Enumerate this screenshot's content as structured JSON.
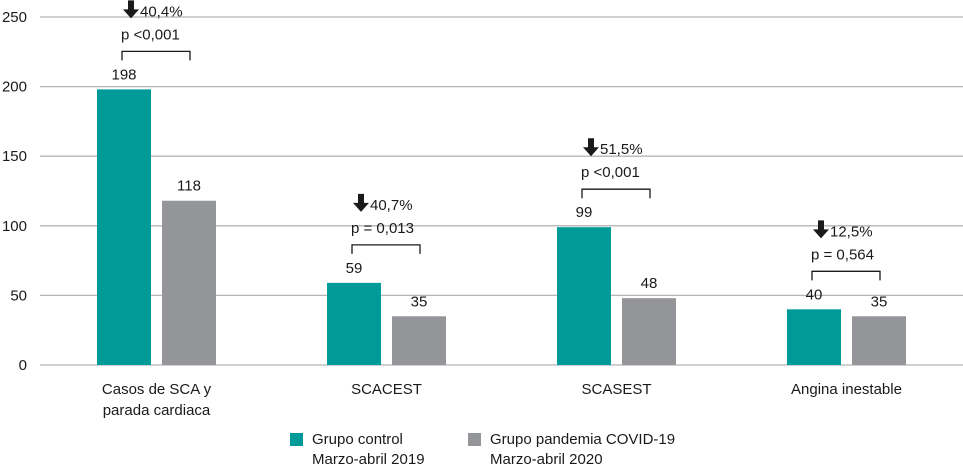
{
  "chart_data": {
    "type": "bar",
    "title": "",
    "xlabel": "",
    "ylabel": "",
    "ylim": [
      0,
      250
    ],
    "yticks": [
      0,
      50,
      100,
      150,
      200,
      250
    ],
    "grid": true,
    "categories": [
      [
        "Casos de SCA y",
        "parada cardiaca"
      ],
      [
        "SCACEST"
      ],
      [
        "SCASEST"
      ],
      [
        "Angina inestable"
      ]
    ],
    "series": [
      {
        "name": "Grupo control",
        "sublabel": "Marzo-abril 2019",
        "color": "#009b98",
        "values": [
          198,
          59,
          99,
          40
        ]
      },
      {
        "name": "Grupo pandemia COVID-19",
        "sublabel": "Marzo-abril 2020",
        "color": "#949598",
        "values": [
          118,
          35,
          48,
          35
        ]
      }
    ],
    "annotations": [
      {
        "arrow": "down-arrow-icon",
        "change": "40,4%",
        "p": "p <0,001"
      },
      {
        "arrow": "down-arrow-icon",
        "change": "40,7%",
        "p": "p = 0,013"
      },
      {
        "arrow": "down-arrow-icon",
        "change": "51,5%",
        "p": "p <0,001"
      },
      {
        "arrow": "down-arrow-icon",
        "change": "12,5%",
        "p": "p = 0,564"
      }
    ],
    "legend_position": "bottom-center",
    "colors": {
      "grid": "#b5b5b5",
      "bracket": "#1a1a1a",
      "text": "#1a1a1a"
    }
  }
}
